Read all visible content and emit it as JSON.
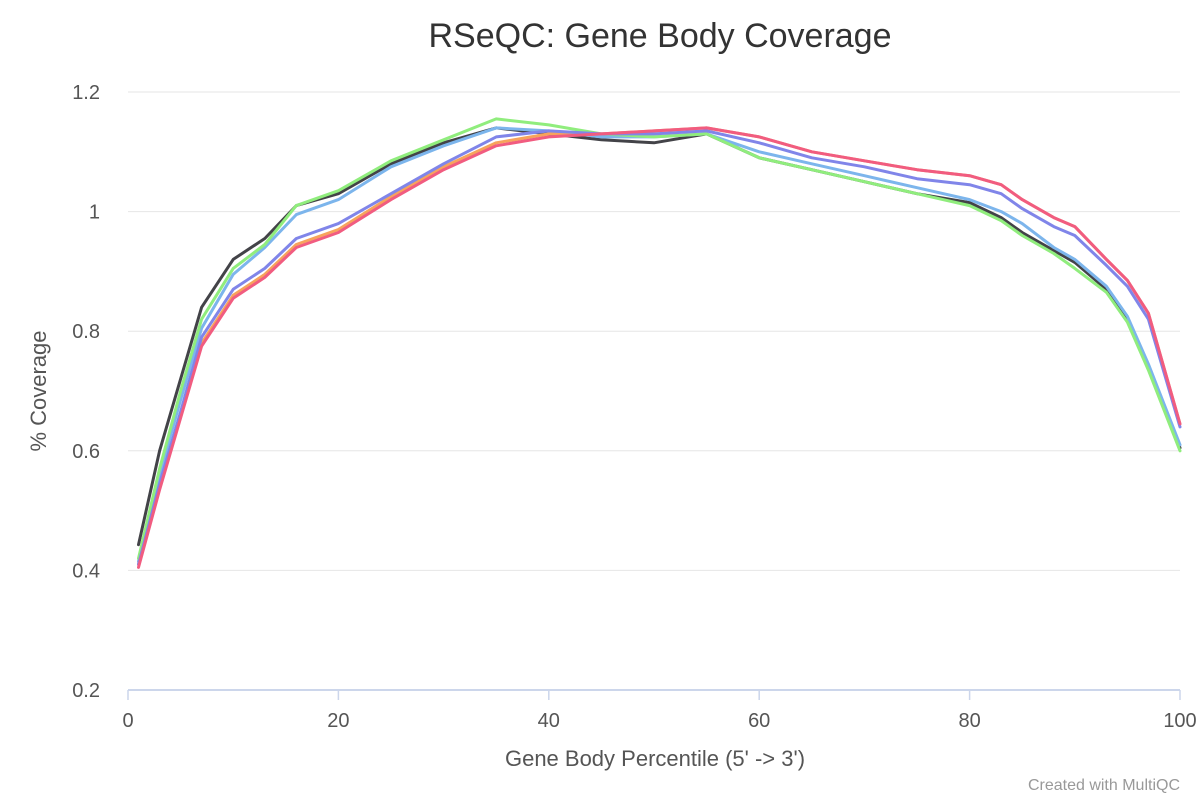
{
  "chart_data": {
    "type": "line",
    "title": "RSeQC: Gene Body Coverage",
    "xlabel": "Gene Body Percentile (5' -> 3')",
    "ylabel": "% Coverage",
    "xlim": [
      0,
      100
    ],
    "ylim": [
      0.2,
      1.2
    ],
    "x_ticks": [
      0,
      20,
      40,
      60,
      80,
      100
    ],
    "y_ticks": [
      0.2,
      0.4,
      0.6,
      0.8,
      1.0,
      1.2
    ],
    "x_tick_labels": [
      "0",
      "20",
      "40",
      "60",
      "80",
      "100"
    ],
    "y_tick_labels": [
      "0.2",
      "0.4",
      "0.6",
      "0.8",
      "1",
      "1.2"
    ],
    "grid": true,
    "legend": "none",
    "credits": "Created with MultiQC",
    "series": [
      {
        "color": "#434348",
        "x": [
          1,
          3,
          5,
          7,
          10,
          13,
          16,
          20,
          25,
          30,
          35,
          40,
          45,
          50,
          55,
          60,
          65,
          70,
          75,
          80,
          83,
          85,
          88,
          90,
          93,
          95,
          97,
          100
        ],
        "values": [
          0.443,
          0.6,
          0.72,
          0.84,
          0.92,
          0.955,
          1.01,
          1.03,
          1.08,
          1.115,
          1.14,
          1.13,
          1.12,
          1.115,
          1.13,
          1.09,
          1.07,
          1.05,
          1.03,
          1.015,
          0.99,
          0.965,
          0.935,
          0.915,
          0.87,
          0.82,
          0.74,
          0.605
        ]
      },
      {
        "color": "#7cb5ec",
        "x": [
          1,
          3,
          5,
          7,
          10,
          13,
          16,
          20,
          25,
          30,
          35,
          40,
          45,
          50,
          55,
          60,
          65,
          70,
          75,
          80,
          83,
          85,
          88,
          90,
          93,
          95,
          97,
          100
        ],
        "values": [
          0.415,
          0.56,
          0.685,
          0.805,
          0.895,
          0.94,
          0.995,
          1.02,
          1.075,
          1.11,
          1.14,
          1.135,
          1.125,
          1.125,
          1.13,
          1.1,
          1.08,
          1.06,
          1.04,
          1.02,
          1.0,
          0.98,
          0.94,
          0.92,
          0.875,
          0.825,
          0.745,
          0.61
        ]
      },
      {
        "color": "#90ed7d",
        "x": [
          1,
          3,
          5,
          7,
          10,
          13,
          16,
          20,
          25,
          30,
          35,
          40,
          45,
          50,
          55,
          60,
          65,
          70,
          75,
          80,
          83,
          85,
          88,
          90,
          93,
          95,
          97,
          100
        ],
        "values": [
          0.42,
          0.57,
          0.7,
          0.82,
          0.905,
          0.945,
          1.01,
          1.035,
          1.085,
          1.12,
          1.155,
          1.145,
          1.13,
          1.125,
          1.13,
          1.09,
          1.07,
          1.05,
          1.03,
          1.01,
          0.985,
          0.96,
          0.93,
          0.905,
          0.865,
          0.815,
          0.735,
          0.6
        ]
      },
      {
        "color": "#f7a35c",
        "x": [
          1,
          3,
          5,
          7,
          10,
          13,
          16,
          20,
          25,
          30,
          35,
          40,
          45,
          50,
          55,
          60,
          65,
          70,
          75,
          80,
          83,
          85,
          88,
          90,
          93,
          95,
          97,
          100
        ],
        "values": [
          0.41,
          0.54,
          0.66,
          0.78,
          0.86,
          0.895,
          0.945,
          0.97,
          1.025,
          1.075,
          1.115,
          1.13,
          1.13,
          1.135,
          1.14,
          1.125,
          1.1,
          1.085,
          1.07,
          1.06,
          1.045,
          1.02,
          0.99,
          0.975,
          0.92,
          0.885,
          0.83,
          0.645
        ]
      },
      {
        "color": "#8085e9",
        "x": [
          1,
          3,
          5,
          7,
          10,
          13,
          16,
          20,
          25,
          30,
          35,
          40,
          45,
          50,
          55,
          60,
          65,
          70,
          75,
          80,
          83,
          85,
          88,
          90,
          93,
          95,
          97,
          100
        ],
        "values": [
          0.41,
          0.545,
          0.665,
          0.79,
          0.87,
          0.905,
          0.955,
          0.98,
          1.03,
          1.08,
          1.125,
          1.135,
          1.13,
          1.13,
          1.135,
          1.115,
          1.09,
          1.075,
          1.055,
          1.045,
          1.03,
          1.005,
          0.975,
          0.96,
          0.91,
          0.875,
          0.82,
          0.64
        ]
      },
      {
        "color": "#f15c80",
        "x": [
          1,
          3,
          5,
          7,
          10,
          13,
          16,
          20,
          25,
          30,
          35,
          40,
          45,
          50,
          55,
          60,
          65,
          70,
          75,
          80,
          83,
          85,
          88,
          90,
          93,
          95,
          97,
          100
        ],
        "values": [
          0.405,
          0.535,
          0.655,
          0.775,
          0.855,
          0.89,
          0.94,
          0.965,
          1.02,
          1.07,
          1.11,
          1.125,
          1.13,
          1.135,
          1.14,
          1.125,
          1.1,
          1.085,
          1.07,
          1.06,
          1.045,
          1.02,
          0.99,
          0.975,
          0.92,
          0.885,
          0.83,
          0.645
        ]
      }
    ]
  }
}
